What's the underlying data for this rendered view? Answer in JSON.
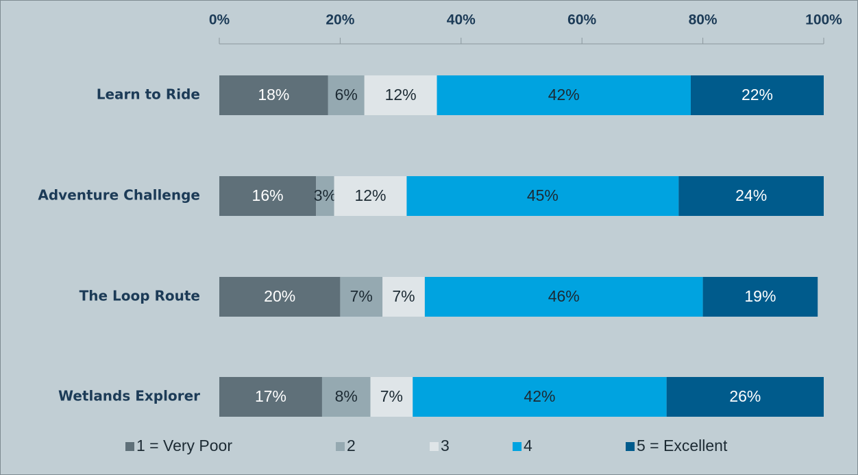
{
  "chart_data": {
    "type": "stacked-bar-horizontal",
    "categories": [
      "Learn to Ride",
      "Adventure Challenge",
      "The Loop Route",
      "Wetlands Explorer"
    ],
    "series": [
      {
        "name": "1 = Very Poor",
        "color": "#5f7079",
        "values": [
          18,
          16,
          20,
          17
        ],
        "value_labels": [
          "18%",
          "16%",
          "20%",
          "17%"
        ]
      },
      {
        "name": "2",
        "color": "#95a9b1",
        "values": [
          6,
          3,
          7,
          8
        ],
        "value_labels": [
          "6%",
          "3%",
          "7%",
          "8%"
        ]
      },
      {
        "name": "3",
        "color": "#dfe5e8",
        "values": [
          12,
          12,
          7,
          7
        ],
        "value_labels": [
          "12%",
          "12%",
          "7%",
          "7%"
        ]
      },
      {
        "name": "4",
        "color": "#00a3e0",
        "values": [
          42,
          45,
          46,
          42
        ],
        "value_labels": [
          "42%",
          "45%",
          "46%",
          "42%"
        ]
      },
      {
        "name": "5 = Excellent",
        "color": "#005b8c",
        "values": [
          22,
          24,
          19,
          26
        ],
        "value_labels": [
          "22%",
          "24%",
          "19%",
          "26%"
        ]
      }
    ],
    "xlim": [
      0,
      100
    ],
    "xticks": [
      {
        "value": 0,
        "label": "0%"
      },
      {
        "value": 20,
        "label": "20%"
      },
      {
        "value": 40,
        "label": "40%"
      },
      {
        "value": 60,
        "label": "60%"
      },
      {
        "value": 80,
        "label": "80%"
      },
      {
        "value": 100,
        "label": "100%"
      }
    ],
    "legend": "bottom"
  }
}
